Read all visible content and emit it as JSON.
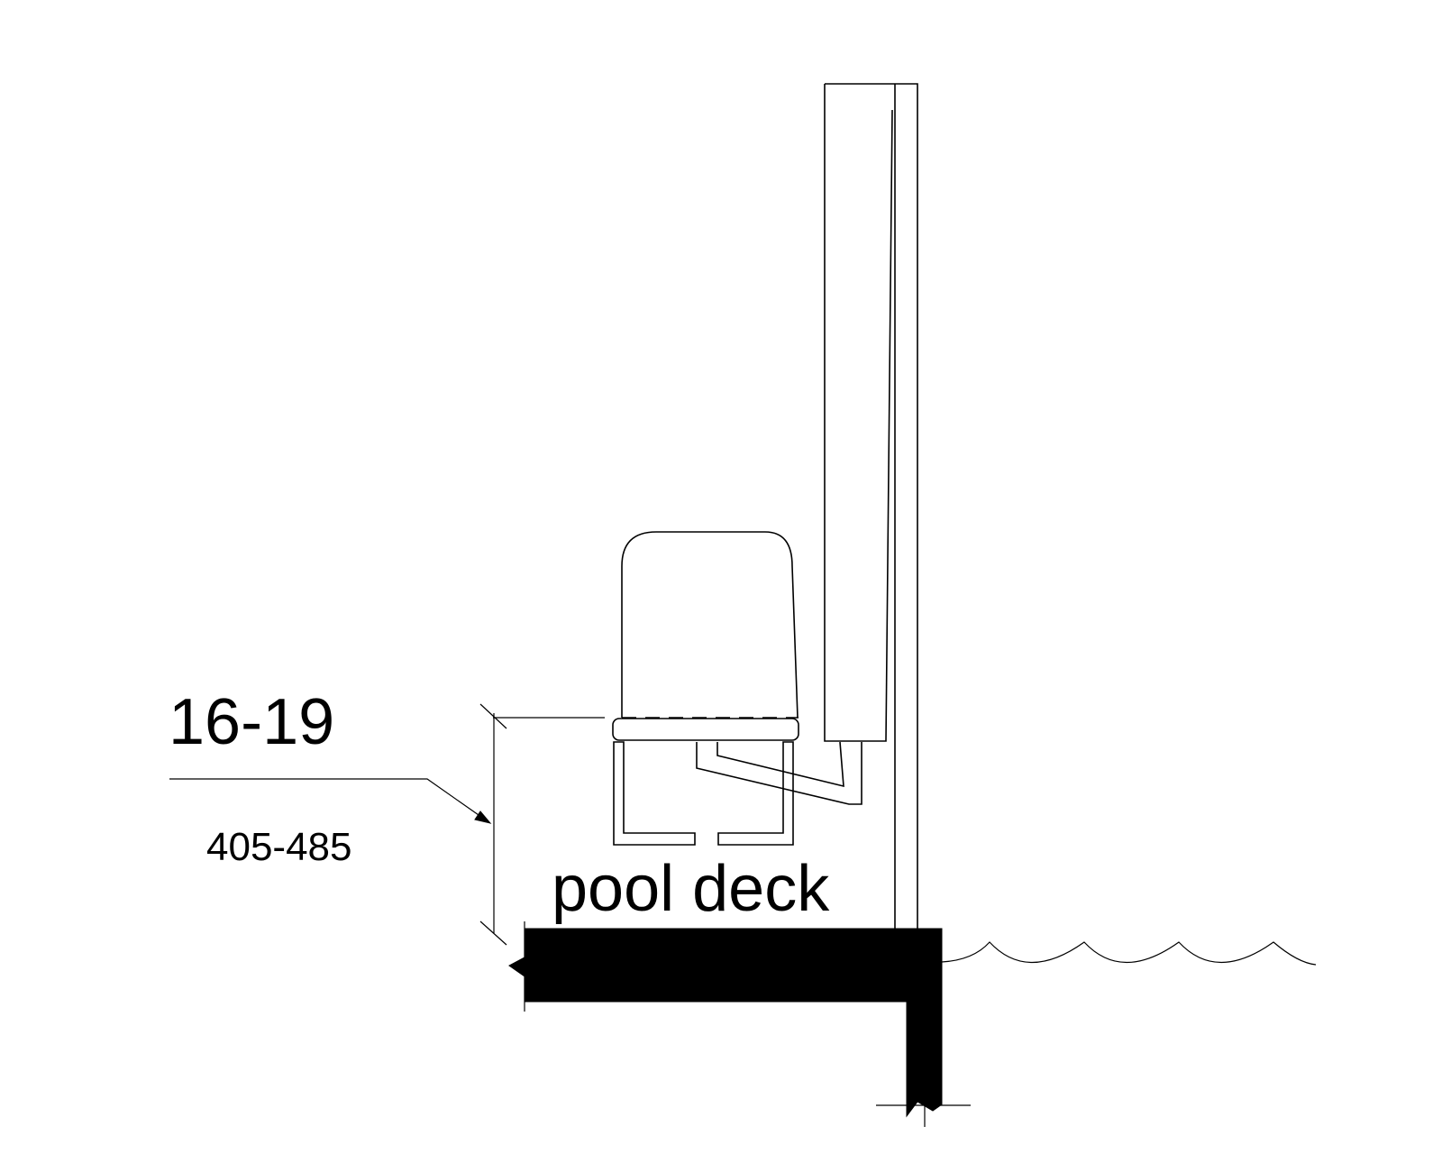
{
  "labels": {
    "dimension_inches": "16-19",
    "dimension_mm": "405-485",
    "surface": "pool deck"
  },
  "colors": {
    "line": "#000000",
    "background": "#ffffff"
  }
}
